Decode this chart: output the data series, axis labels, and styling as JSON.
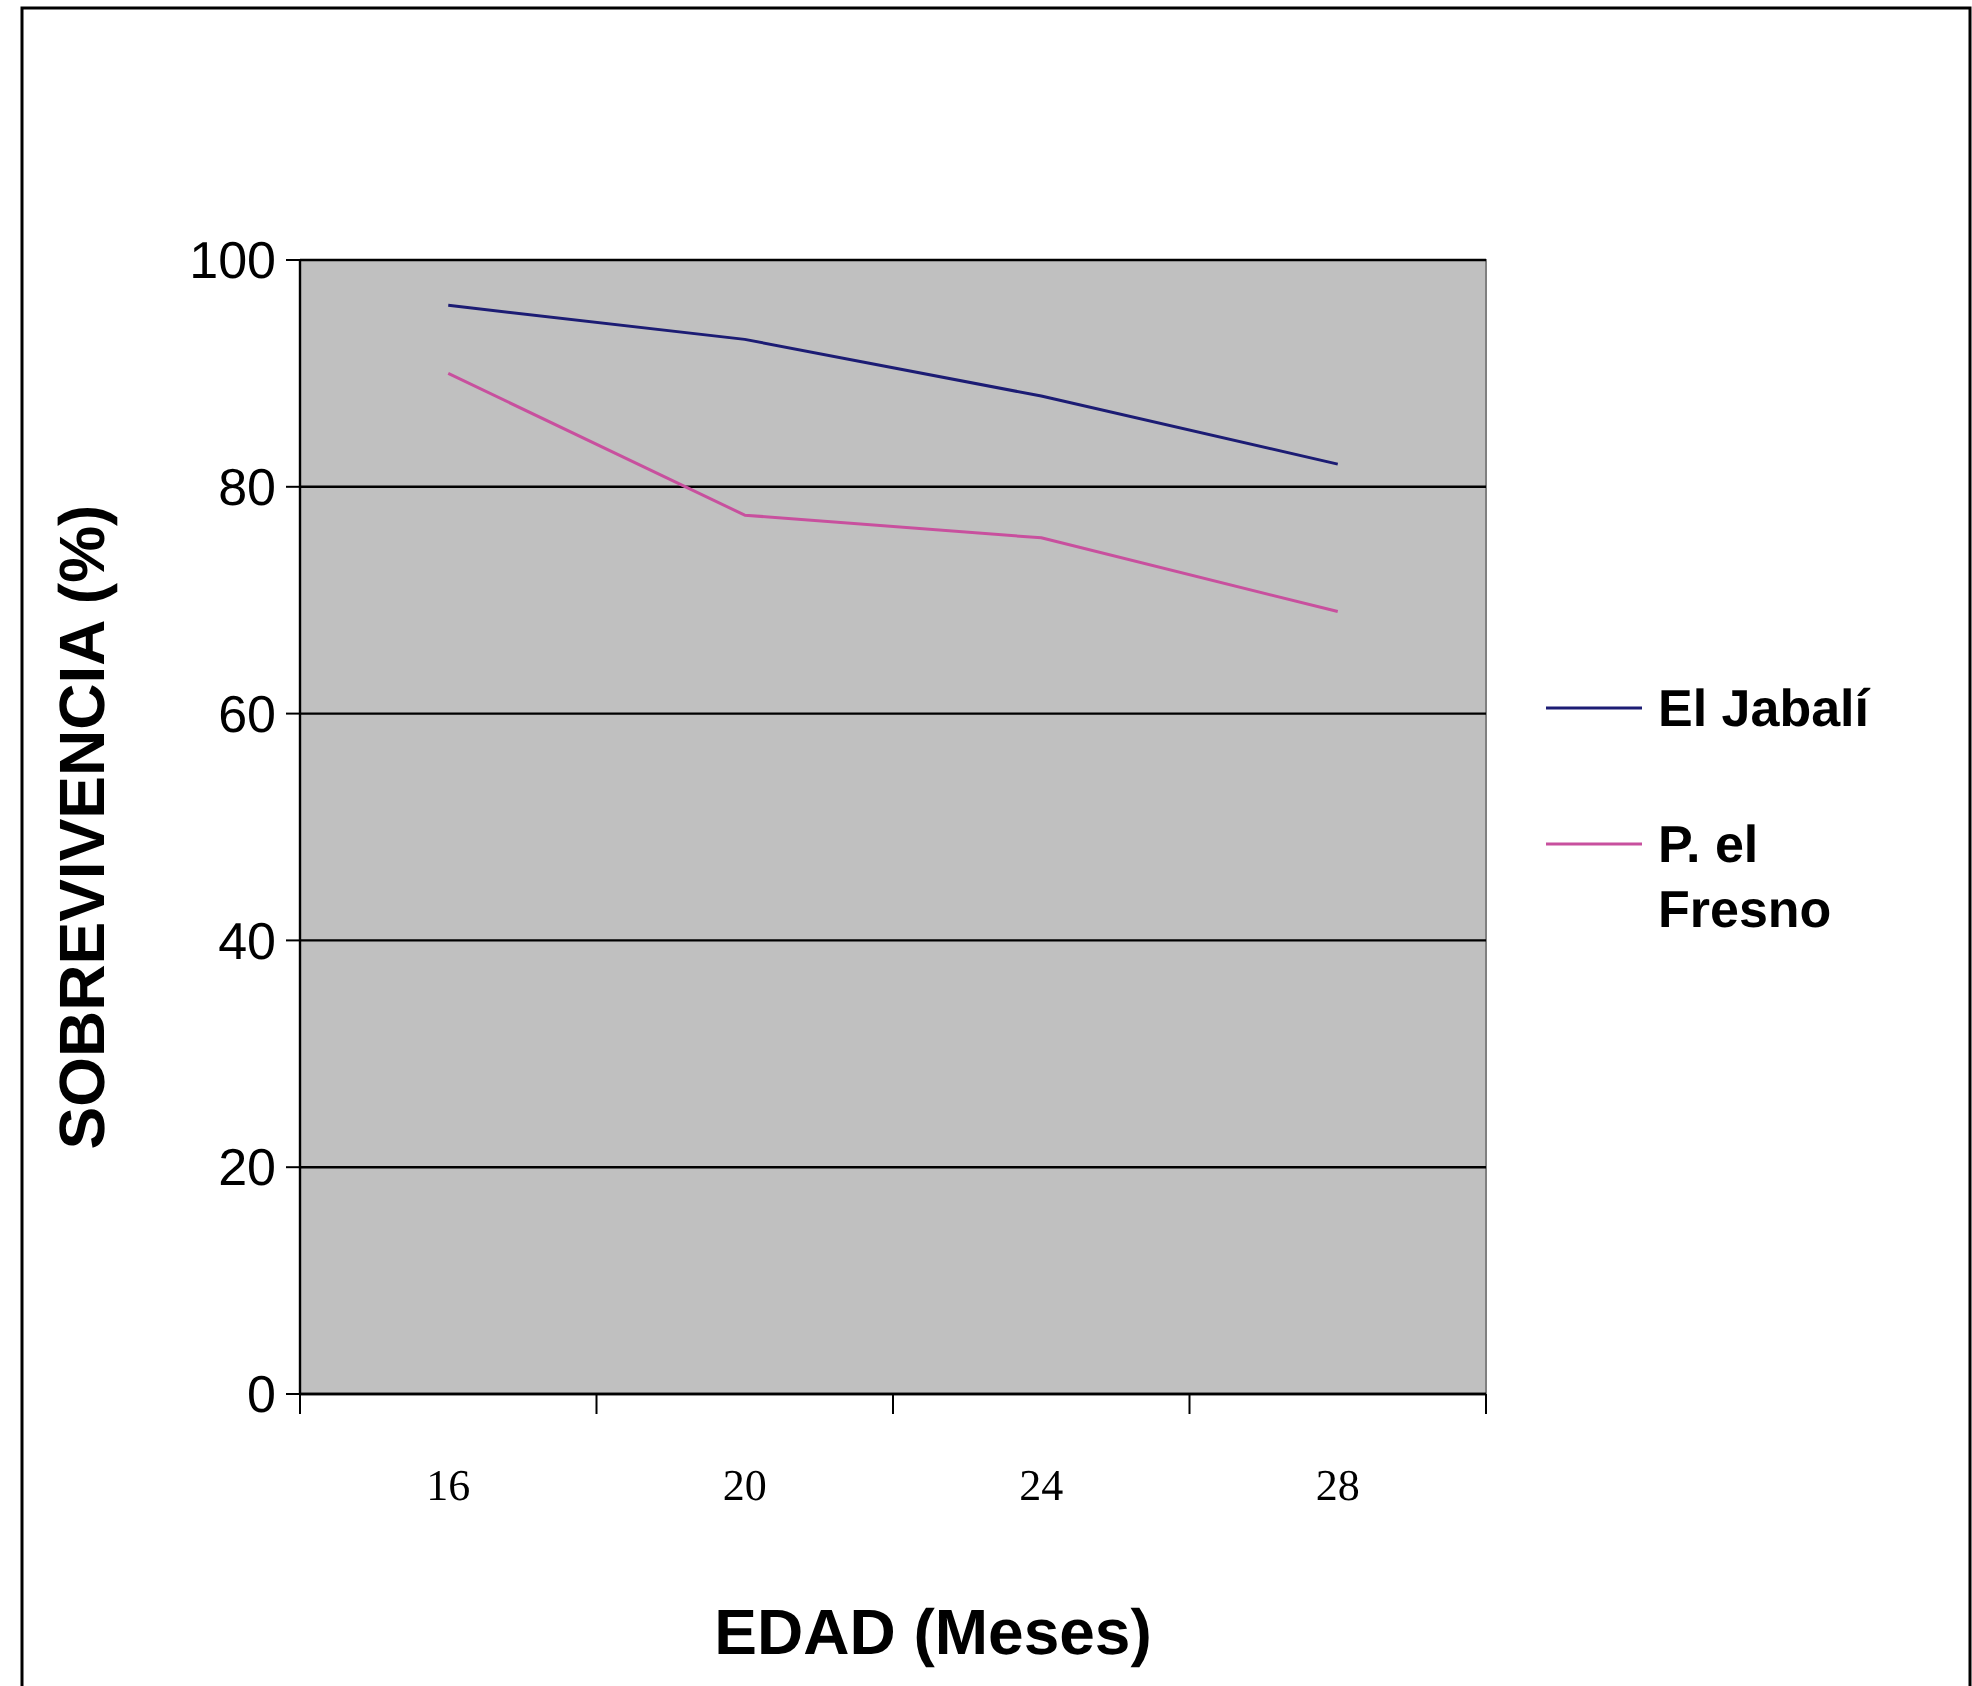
{
  "chart_data": {
    "type": "line",
    "xlabel": "EDAD (Meses)",
    "ylabel": "SOBREVIVENCIA (%)",
    "categories": [
      "16",
      "20",
      "24",
      "28"
    ],
    "series": [
      {
        "name": "El Jabalí",
        "color": "#1c1c74",
        "values": [
          96,
          93,
          88,
          82
        ]
      },
      {
        "name": "P. el Fresno",
        "color": "#c8509e",
        "values": [
          90,
          77.5,
          75.5,
          69
        ]
      }
    ],
    "ylim": [
      0,
      100
    ],
    "yticks": [
      0,
      20,
      40,
      60,
      80,
      100
    ],
    "grid": "y",
    "legend": "right",
    "marker": "none",
    "line_style": "solid"
  }
}
